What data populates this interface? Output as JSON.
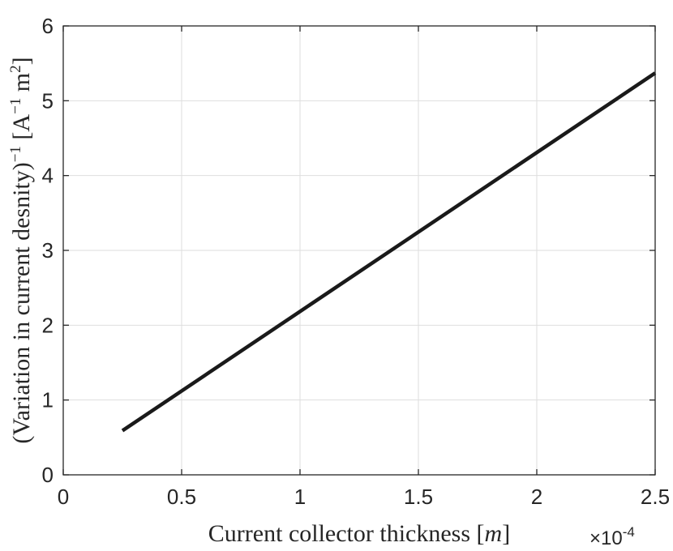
{
  "chart_data": {
    "type": "line",
    "title": "",
    "xlabel": "Current collector thickness",
    "xlabel_unit": "m",
    "ylabel": "(Variation in current desnity)",
    "ylabel_power": "−1",
    "ylabel_unit_prefix": "[A",
    "ylabel_unit_power1": "−1",
    "ylabel_unit_mid": " m",
    "ylabel_unit_power2": "2",
    "ylabel_unit_suffix": "]",
    "x_multiplier_base": "×10",
    "x_multiplier_exponent": "-4",
    "xlim": [
      0,
      2.5
    ],
    "ylim": [
      0,
      6
    ],
    "xticks": [
      0,
      0.5,
      1,
      1.5,
      2,
      2.5
    ],
    "xtick_labels": [
      "0",
      "0.5",
      "1",
      "1.5",
      "2",
      "2.5"
    ],
    "yticks": [
      0,
      1,
      2,
      3,
      4,
      5,
      6
    ],
    "ytick_labels": [
      "0",
      "1",
      "2",
      "3",
      "4",
      "5",
      "6"
    ],
    "grid": true,
    "series": [
      {
        "x": [
          0.25,
          2.5
        ],
        "y": [
          0.59,
          5.37
        ],
        "color": "#1a1a1a"
      }
    ]
  }
}
